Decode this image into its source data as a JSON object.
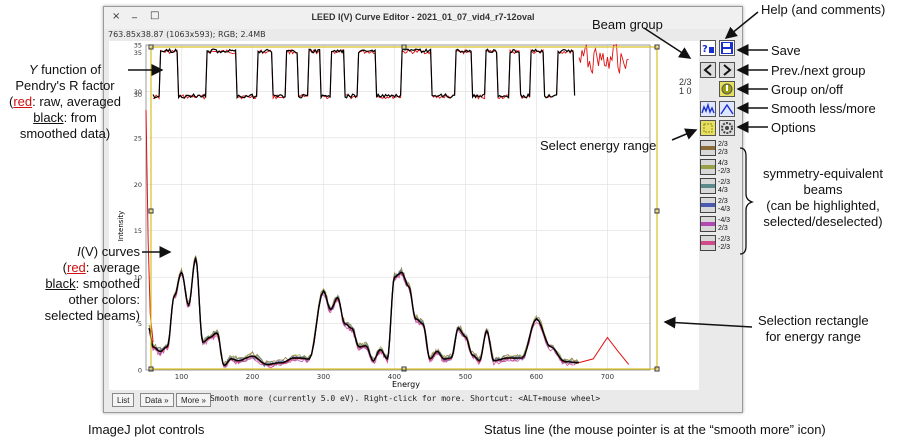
{
  "window": {
    "title": "LEED I(V) Curve Editor - 2021_01_07_vid4_r7-12oval",
    "info": "763.85x38.87   (1063x593); RGB; 2.4MB",
    "controls": [
      "×",
      "_",
      "□"
    ]
  },
  "plot": {
    "xlabel": "Energy",
    "ylabel": "Intensity",
    "xticks": [
      "100",
      "200",
      "300",
      "400",
      "500",
      "600",
      "700"
    ],
    "yticks_left": [
      "0",
      "5",
      "10",
      "15",
      "20",
      "25",
      "30",
      "35"
    ],
    "y_function_ticks": [
      "35",
      "30"
    ]
  },
  "chart_data": {
    "type": "line",
    "xlabel": "Energy",
    "ylabel": "Intensity",
    "xlim": [
      50,
      760
    ],
    "ylim": [
      0,
      35
    ],
    "series": [
      {
        "x": [
          54,
          60,
          70,
          80,
          90,
          100,
          110,
          120,
          130,
          140,
          150,
          160,
          170,
          180,
          200,
          220,
          240,
          260,
          280,
          300,
          310,
          320,
          330,
          340,
          350,
          360,
          370,
          380,
          390,
          400,
          410,
          420,
          430,
          440,
          450,
          460,
          470,
          480,
          490,
          500,
          510,
          520,
          530,
          540,
          560,
          580,
          600,
          620,
          640,
          660
        ],
        "y": [
          4.5,
          2.5,
          2,
          2.5,
          8,
          10.5,
          7,
          12,
          3,
          3.5,
          4,
          0.5,
          1.2,
          1,
          1.5,
          0.6,
          0.8,
          1.3,
          1.2,
          8.5,
          6.5,
          7.8,
          5,
          4.5,
          2.5,
          2.6,
          1,
          2.2,
          1.2,
          10,
          10.5,
          9,
          5.5,
          5,
          1.2,
          2,
          1.2,
          1.3,
          4.5,
          3.6,
          1.6,
          1,
          4.2,
          1,
          1.3,
          1.3,
          5.5,
          2.5,
          0.9,
          0.8
        ]
      }
    ]
  },
  "sidebar": {
    "group_label": "2/3\n1 0",
    "symmetry_beams": [
      {
        "label": "2/3\n2/3",
        "color": "#8b6d3a"
      },
      {
        "label": "4/3\n-2/3",
        "color": "#9aa04a"
      },
      {
        "label": "-2/3\n4/3",
        "color": "#5c8a8a"
      },
      {
        "label": "2/3\n-4/3",
        "color": "#4a5ab0"
      },
      {
        "label": "-4/3\n2/3",
        "color": "#b04ab0"
      },
      {
        "label": "-2/3\n-2/3",
        "color": "#d04a8a"
      }
    ]
  },
  "controls": {
    "list": "List",
    "data": "Data »",
    "more": "More »"
  },
  "status_line": "Smooth more (currently 5.0 eV). Right-click for more. Shortcut: <ALT+mouse wheel>",
  "annotations": {
    "beam_group": "Beam group",
    "help": "Help (and comments)",
    "save": "Save",
    "prev_next": "Prev./next group",
    "group_onoff": "Group on/off",
    "smooth": "Smooth less/more",
    "options": "Options",
    "select_energy": "Select energy range",
    "symmetry_1": "symmetry-equivalent",
    "symmetry_2": "beams",
    "symmetry_3": "(can be highlighted,",
    "symmetry_4": "selected/deselected)",
    "y_func_1a": "Y",
    "y_func_1b": " function of",
    "y_func_2": "Pendry's R factor",
    "y_func_3a": "(",
    "y_func_3b": "red",
    "y_func_3c": ": raw, averaged",
    "y_func_4a": "black",
    "y_func_4b": ": from",
    "y_func_5": "smoothed data)",
    "iv_1a": "I",
    "iv_1b": "(V) curves",
    "iv_2a": "(",
    "iv_2b": "red",
    "iv_2c": ": average",
    "iv_3a": "black",
    "iv_3b": ": smoothed",
    "iv_4": "other colors:",
    "iv_5": "selected beams)",
    "selection_1": "Selection rectangle",
    "selection_2": "for energy range",
    "imagej": "ImageJ plot controls",
    "status_ann": "Status line (the mouse pointer is at the “smooth more” icon)"
  }
}
